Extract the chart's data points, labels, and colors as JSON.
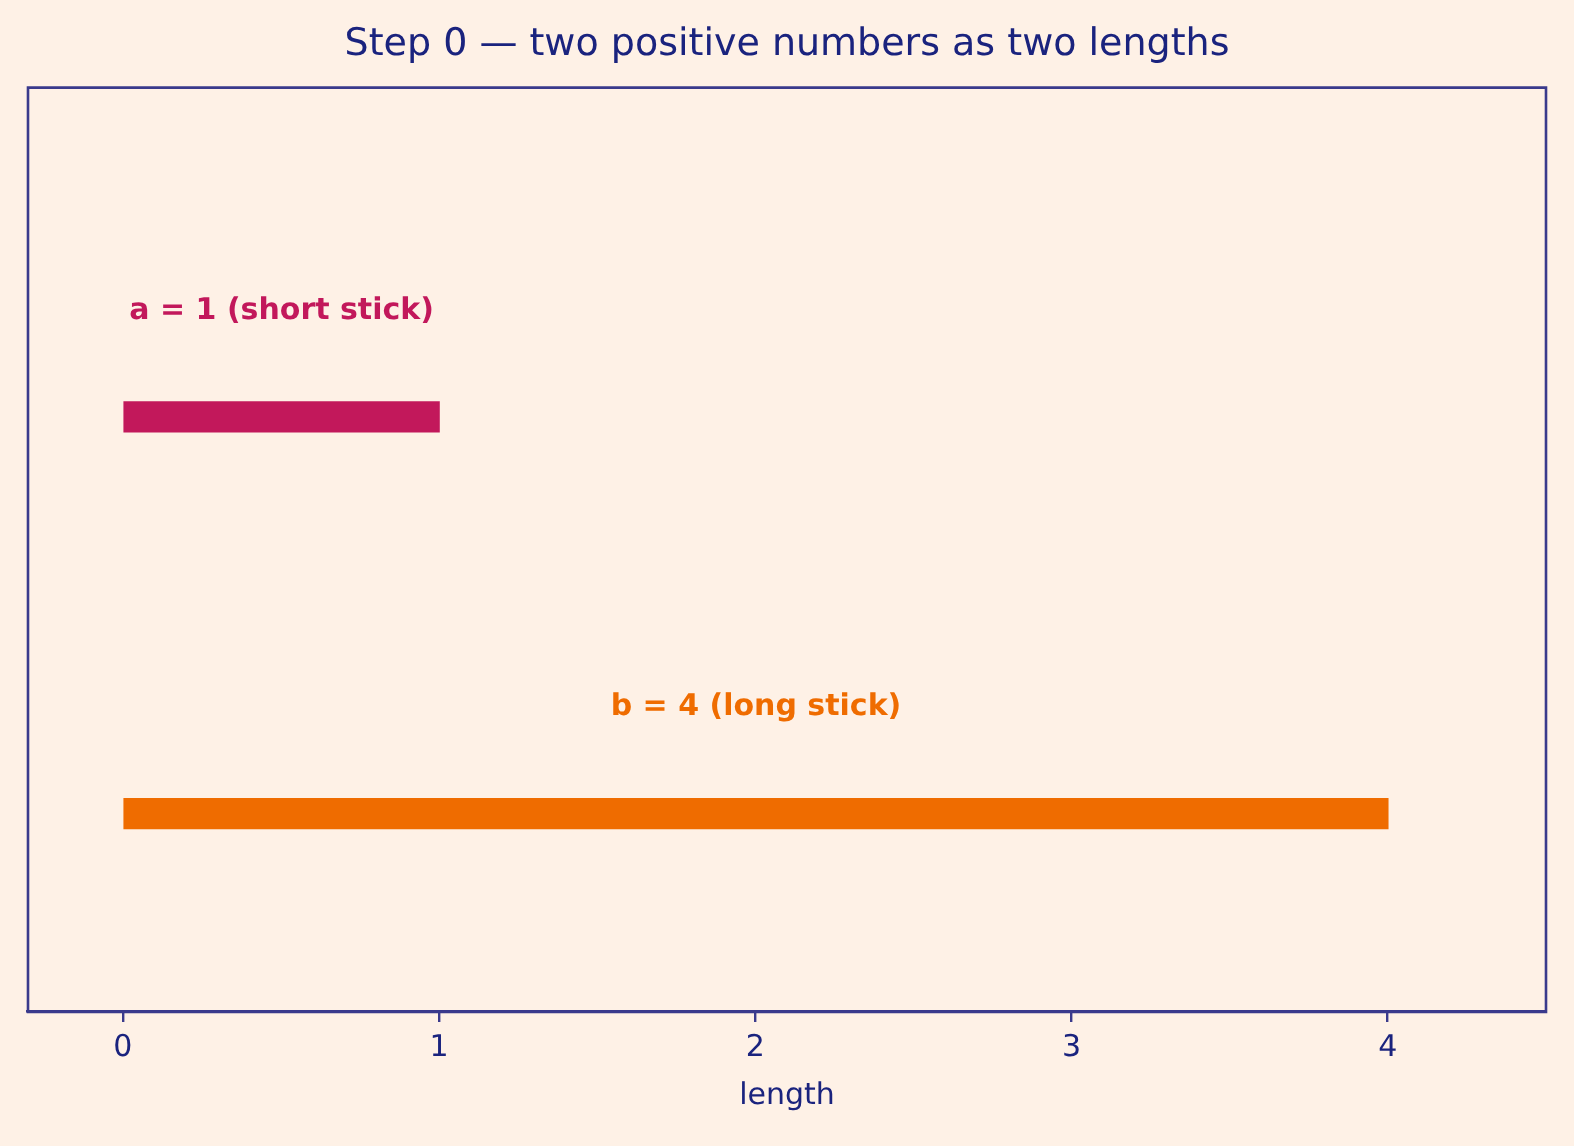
{
  "chart_data": {
    "type": "bar",
    "orientation": "horizontal",
    "title": "Step 0 — two positive numbers as two lengths",
    "xlabel": "length",
    "categories": [
      null,
      null
    ],
    "values": [
      1,
      4
    ],
    "colors": [
      "#c2185b",
      "#ef6c00"
    ],
    "annotations": [
      "a = 1 (short stick)",
      "b = 4 (long stick)"
    ],
    "xlim": [
      -0.3,
      4.5
    ],
    "xticks": [
      0,
      1,
      2,
      3,
      4
    ]
  }
}
